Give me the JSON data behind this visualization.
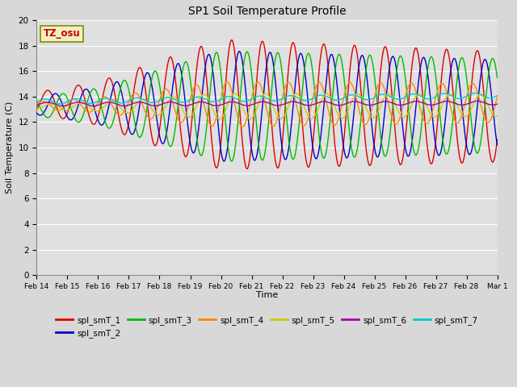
{
  "title": "SP1 Soil Temperature Profile",
  "xlabel": "Time",
  "ylabel": "Soil Temperature (C)",
  "ylim": [
    0,
    20
  ],
  "yticks": [
    0,
    2,
    4,
    6,
    8,
    10,
    12,
    14,
    16,
    18,
    20
  ],
  "annotation": "TZ_osu",
  "annotation_color": "#cc0000",
  "annotation_bg": "#f0f0c0",
  "annotation_border": "#888800",
  "series_colors": {
    "spl_smT_1": "#dd0000",
    "spl_smT_2": "#0000cc",
    "spl_smT_3": "#00bb00",
    "spl_smT_4": "#ff8800",
    "spl_smT_5": "#cccc00",
    "spl_smT_6": "#aa00aa",
    "spl_smT_7": "#00cccc"
  },
  "bg_color": "#e0e0e0",
  "grid_color": "#ffffff",
  "fig_bg": "#d8d8d8"
}
